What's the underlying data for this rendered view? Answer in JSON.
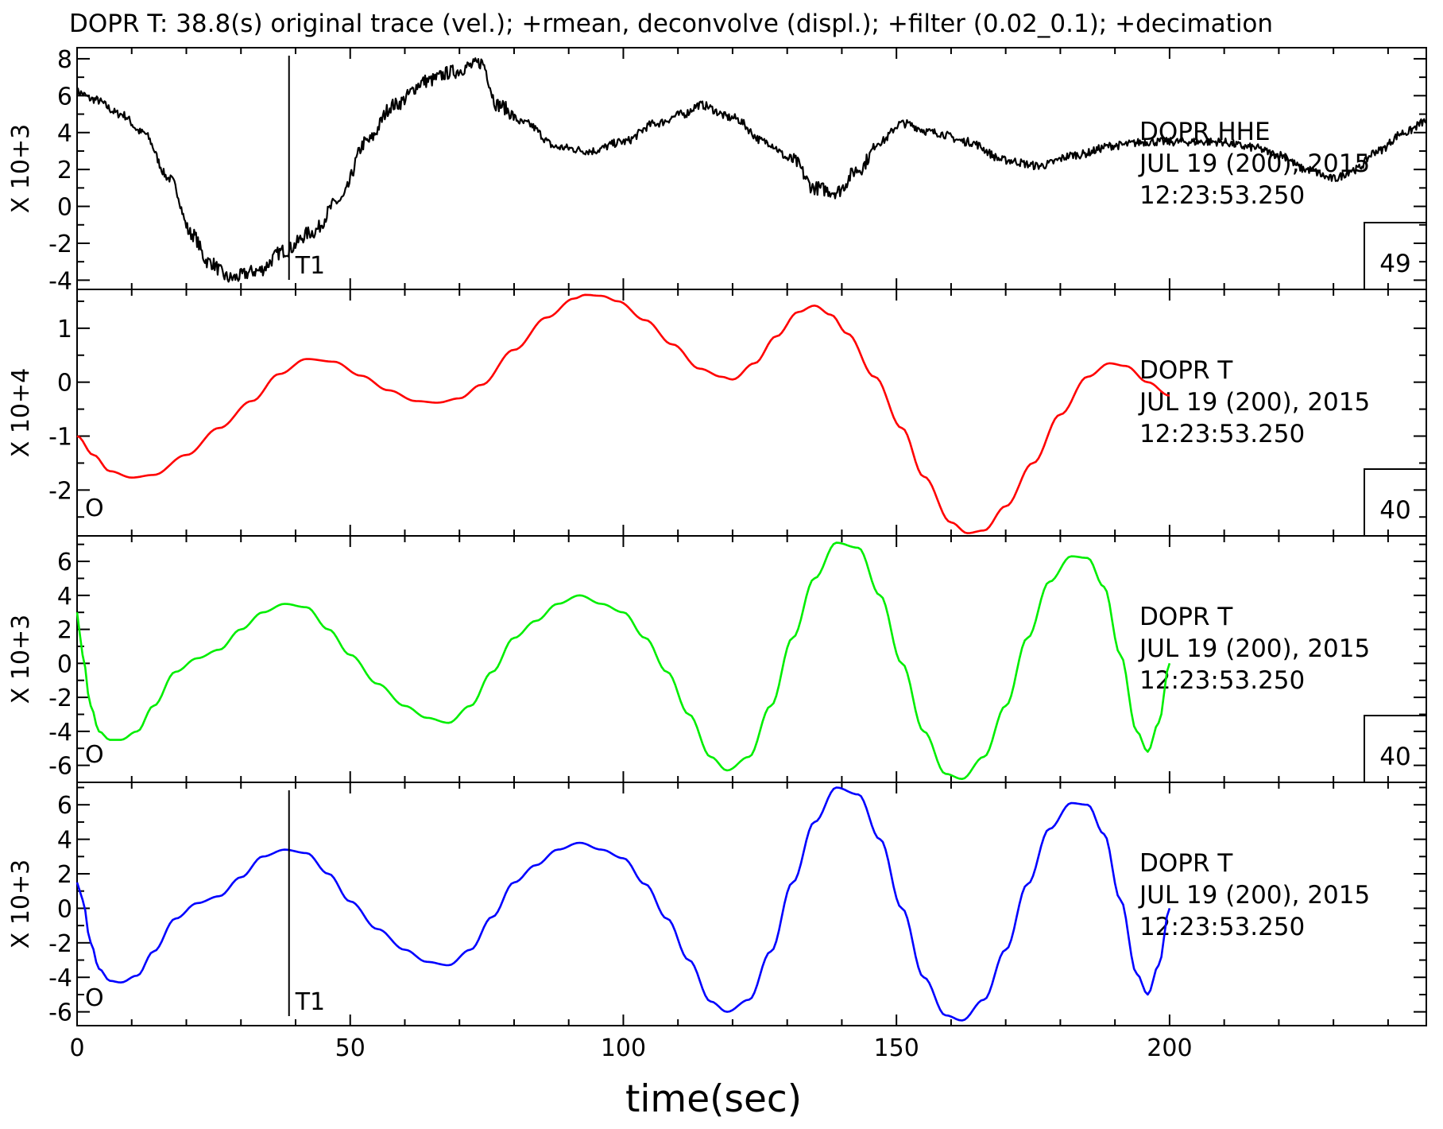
{
  "title": "DOPR T: 38.8(s)    original trace (vel.);   +rmean, deconvolve (displ.);   +filter (0.02_0.1); +decimation",
  "chart_data": [
    {
      "type": "line",
      "name": "panel-hhe",
      "color": "#000000",
      "ylabel": "X 10+3",
      "ylim": [
        -4.5,
        8.6
      ],
      "yticks": [
        -4,
        -2,
        0,
        2,
        4,
        6,
        8
      ],
      "info": [
        "DOPR  HHE",
        "JUL 19 (200), 2015",
        "12:23:53.250"
      ],
      "box_value": "49",
      "markers": [
        {
          "label": "T1",
          "x": 38.8
        }
      ],
      "noise": true,
      "series": [
        {
          "x": [
            0,
            3,
            8,
            12,
            17,
            21,
            24,
            28,
            33,
            38,
            43,
            48,
            53,
            58,
            64,
            69,
            72,
            74,
            77,
            82,
            88,
            94,
            100,
            106,
            111,
            114,
            120,
            126,
            131,
            135,
            139,
            143,
            147,
            151,
            157,
            163,
            170,
            176,
            183,
            190,
            196,
            203,
            209,
            215,
            220,
            225,
            230,
            234,
            238,
            243,
            247
          ],
          "y": [
            6.2,
            5.8,
            5.0,
            4.0,
            1.5,
            -1.5,
            -3.0,
            -3.9,
            -3.5,
            -2.4,
            -1.4,
            0.3,
            3.5,
            5.5,
            6.8,
            7.3,
            7.6,
            7.8,
            5.5,
            4.5,
            3.2,
            3.0,
            3.5,
            4.5,
            5.0,
            5.5,
            4.8,
            3.5,
            2.5,
            1.0,
            0.8,
            2.0,
            3.5,
            4.5,
            4.0,
            3.5,
            2.5,
            2.2,
            2.8,
            3.3,
            3.5,
            3.5,
            3.5,
            3.2,
            2.8,
            2.0,
            1.5,
            2.0,
            3.0,
            4.0,
            4.6
          ]
        }
      ]
    },
    {
      "type": "line",
      "name": "panel-red",
      "color": "#ff0000",
      "ylabel": "X 10+4",
      "ylim": [
        -2.85,
        1.72
      ],
      "yticks": [
        -2,
        -1,
        0,
        1
      ],
      "info": [
        "DOPR  T",
        "JUL 19 (200), 2015",
        "12:23:53.250"
      ],
      "box_value": "40",
      "markers": [
        {
          "label": "O",
          "x": 0,
          "hidden_line": true
        }
      ],
      "noise": false,
      "series": [
        {
          "x": [
            0,
            3,
            6,
            10,
            14,
            20,
            26,
            32,
            37,
            42,
            47,
            52,
            57,
            62,
            66,
            70,
            74,
            80,
            86,
            91,
            93,
            96,
            99,
            104,
            109,
            114,
            118,
            120,
            124,
            128,
            132,
            135,
            138,
            141,
            146,
            151,
            155,
            160,
            163,
            166,
            170,
            175,
            180,
            185,
            189,
            192,
            196,
            200
          ],
          "y": [
            -1.0,
            -1.35,
            -1.65,
            -1.77,
            -1.72,
            -1.35,
            -0.85,
            -0.35,
            0.15,
            0.43,
            0.38,
            0.12,
            -0.15,
            -0.35,
            -0.38,
            -0.3,
            -0.05,
            0.6,
            1.2,
            1.55,
            1.62,
            1.6,
            1.5,
            1.15,
            0.7,
            0.25,
            0.1,
            0.05,
            0.35,
            0.85,
            1.3,
            1.42,
            1.25,
            0.9,
            0.1,
            -0.85,
            -1.75,
            -2.6,
            -2.8,
            -2.75,
            -2.3,
            -1.5,
            -0.6,
            0.1,
            0.35,
            0.3,
            0.0,
            -0.25
          ]
        }
      ]
    },
    {
      "type": "line",
      "name": "panel-green",
      "color": "#00ee00",
      "ylabel": "X 10+3",
      "ylim": [
        -7.0,
        7.5
      ],
      "yticks": [
        -6,
        -4,
        -2,
        0,
        2,
        4,
        6
      ],
      "info": [
        "DOPR  T",
        "JUL 19 (200), 2015",
        "12:23:53.250"
      ],
      "box_value": "40",
      "markers": [
        {
          "label": "O",
          "x": 0,
          "hidden_line": true
        }
      ],
      "noise": false,
      "series": [
        {
          "x": [
            0,
            1,
            2.5,
            4,
            6,
            8,
            11,
            14,
            18,
            22,
            26,
            30,
            34,
            38,
            42,
            46,
            50,
            55,
            60,
            64,
            68,
            72,
            76,
            80,
            84,
            88,
            92,
            96,
            100,
            104,
            108,
            112,
            116,
            119,
            123,
            127,
            131,
            135,
            139,
            143,
            147,
            151,
            155,
            159,
            162,
            166,
            170,
            174,
            178,
            182,
            185,
            188,
            191,
            194,
            196,
            198,
            200
          ],
          "y": [
            3.0,
            0.5,
            -2.5,
            -4.0,
            -4.5,
            -4.5,
            -4.0,
            -2.5,
            -0.5,
            0.3,
            0.8,
            2.0,
            3.0,
            3.5,
            3.3,
            2.0,
            0.5,
            -1.2,
            -2.5,
            -3.2,
            -3.5,
            -2.5,
            -0.5,
            1.5,
            2.5,
            3.5,
            4.0,
            3.5,
            3.0,
            1.5,
            -0.5,
            -3.0,
            -5.5,
            -6.3,
            -5.5,
            -2.5,
            1.5,
            5.0,
            7.1,
            6.8,
            4.0,
            0.0,
            -4.0,
            -6.5,
            -6.8,
            -5.5,
            -2.5,
            1.5,
            4.8,
            6.3,
            6.2,
            4.5,
            0.5,
            -4.0,
            -5.2,
            -3.5,
            0.0
          ]
        }
      ]
    },
    {
      "type": "line",
      "name": "panel-blue",
      "color": "#0000ff",
      "ylabel": "X 10+3",
      "ylim": [
        -6.8,
        7.3
      ],
      "yticks": [
        -6,
        -4,
        -2,
        0,
        2,
        4,
        6
      ],
      "info": [
        "DOPR  T",
        "JUL 19 (200), 2015",
        "12:23:53.250"
      ],
      "box_value": "",
      "markers": [
        {
          "label": "O",
          "x": 0,
          "hidden_line": true
        },
        {
          "label": "T1",
          "x": 38.8
        }
      ],
      "noise": false,
      "series": [
        {
          "x": [
            0,
            1,
            2.5,
            4,
            6,
            8,
            11,
            14,
            18,
            22,
            26,
            30,
            34,
            38,
            42,
            46,
            50,
            55,
            60,
            64,
            68,
            72,
            76,
            80,
            84,
            88,
            92,
            96,
            100,
            104,
            108,
            112,
            116,
            119,
            123,
            127,
            131,
            135,
            139,
            143,
            147,
            151,
            155,
            159,
            162,
            166,
            170,
            174,
            178,
            182,
            185,
            188,
            191,
            194,
            196,
            198,
            200
          ],
          "y": [
            1.5,
            0.5,
            -2.0,
            -3.5,
            -4.2,
            -4.3,
            -3.9,
            -2.5,
            -0.6,
            0.3,
            0.7,
            1.8,
            3.0,
            3.4,
            3.2,
            2.0,
            0.4,
            -1.2,
            -2.4,
            -3.1,
            -3.3,
            -2.4,
            -0.5,
            1.5,
            2.5,
            3.4,
            3.8,
            3.4,
            2.9,
            1.4,
            -0.6,
            -3.0,
            -5.4,
            -6.0,
            -5.3,
            -2.5,
            1.5,
            5.0,
            7.0,
            6.6,
            4.0,
            0.0,
            -4.0,
            -6.2,
            -6.5,
            -5.3,
            -2.4,
            1.4,
            4.6,
            6.1,
            6.0,
            4.3,
            0.5,
            -3.8,
            -5.0,
            -3.3,
            0.0
          ]
        }
      ]
    }
  ],
  "x_axis": {
    "xlim": [
      0,
      247
    ],
    "ticks": [
      0,
      50,
      100,
      150,
      200
    ],
    "xlabel": "time(sec)"
  }
}
